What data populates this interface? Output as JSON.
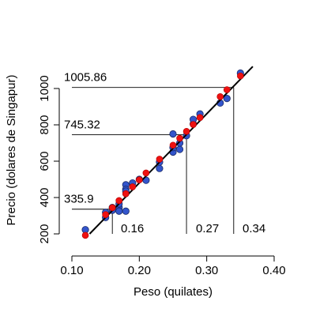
{
  "chart_data": {
    "type": "scatter",
    "xlabel": "Peso (quilates)",
    "ylabel": "Precio (dolares de Singapur)",
    "xlim": [
      0.1,
      0.4
    ],
    "ylim": [
      200,
      1100
    ],
    "xticks": [
      0.1,
      0.2,
      0.3,
      0.4
    ],
    "xtick_labels": [
      "0.10",
      "0.20",
      "0.30",
      "0.40"
    ],
    "yticks": [
      200,
      400,
      600,
      800,
      1000
    ],
    "ytick_labels": [
      "200",
      "400",
      "600",
      "800",
      "1000"
    ],
    "grid": false,
    "legend": "none",
    "regression_line": {
      "x0": 0.1,
      "y0": 100,
      "x1": 0.38,
      "y1": 1165,
      "color": "#000000"
    },
    "observed": {
      "color": "#3355cc",
      "points": [
        [
          0.12,
          223
        ],
        [
          0.15,
          318
        ],
        [
          0.15,
          290
        ],
        [
          0.16,
          345
        ],
        [
          0.16,
          330
        ],
        [
          0.17,
          345
        ],
        [
          0.17,
          325
        ],
        [
          0.17,
          365
        ],
        [
          0.18,
          325
        ],
        [
          0.18,
          470
        ],
        [
          0.18,
          445
        ],
        [
          0.18,
          435
        ],
        [
          0.19,
          480
        ],
        [
          0.2,
          500
        ],
        [
          0.21,
          495
        ],
        [
          0.23,
          560
        ],
        [
          0.23,
          595
        ],
        [
          0.25,
          750
        ],
        [
          0.25,
          650
        ],
        [
          0.25,
          675
        ],
        [
          0.26,
          665
        ],
        [
          0.26,
          700
        ],
        [
          0.27,
          740
        ],
        [
          0.28,
          805
        ],
        [
          0.28,
          830
        ],
        [
          0.29,
          860
        ],
        [
          0.32,
          920
        ],
        [
          0.33,
          945
        ],
        [
          0.35,
          1085
        ]
      ]
    },
    "fitted": {
      "color": "#ee1111",
      "points": [
        [
          0.12,
          192
        ],
        [
          0.15,
          306
        ],
        [
          0.15,
          306
        ],
        [
          0.16,
          344
        ],
        [
          0.16,
          344
        ],
        [
          0.17,
          383
        ],
        [
          0.17,
          383
        ],
        [
          0.18,
          421
        ],
        [
          0.18,
          421
        ],
        [
          0.19,
          459
        ],
        [
          0.2,
          497
        ],
        [
          0.21,
          535
        ],
        [
          0.23,
          611
        ],
        [
          0.25,
          688
        ],
        [
          0.26,
          726
        ],
        [
          0.27,
          764
        ],
        [
          0.28,
          802
        ],
        [
          0.29,
          840
        ],
        [
          0.32,
          955
        ],
        [
          0.33,
          993
        ],
        [
          0.35,
          1069
        ]
      ]
    },
    "annotations": [
      {
        "x": 0.16,
        "y": 335.9,
        "y_label": "335.9",
        "x_label": "0.16"
      },
      {
        "x": 0.27,
        "y": 745.32,
        "y_label": "745.32",
        "x_label": "0.27"
      },
      {
        "x": 0.34,
        "y": 1005.86,
        "y_label": "1005.86",
        "x_label": "0.34"
      }
    ]
  }
}
